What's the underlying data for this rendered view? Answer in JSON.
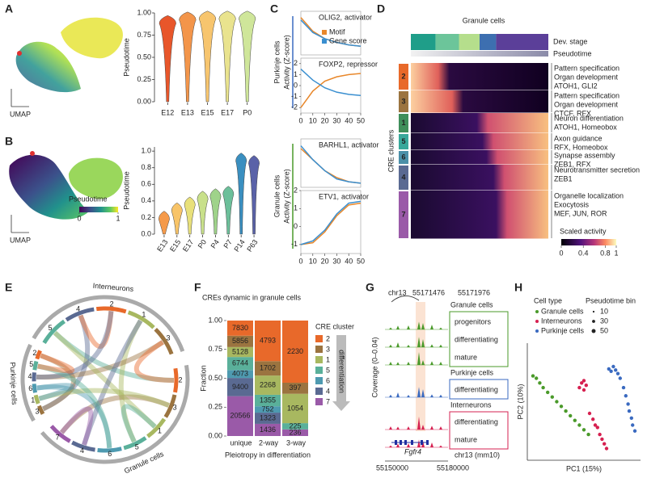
{
  "chart_data": [
    {
      "type": "umap",
      "label": "A",
      "axis_label": "UMAP"
    },
    {
      "type": "violin",
      "categories": [
        "E12",
        "E13",
        "E15",
        "E17",
        "P0"
      ],
      "values": [
        0.88,
        0.92,
        0.93,
        0.93,
        0.93
      ],
      "colors": [
        "#e8562a",
        "#f3954a",
        "#f7c56e",
        "#e9e38e",
        "#cfe69a"
      ],
      "ylabel": "Pseudotime",
      "ylim": [
        0,
        1
      ],
      "yticks": [
        {
          "value": 0,
          "label": "0.00"
        },
        {
          "value": 0.25,
          "label": "0.25"
        },
        {
          "value": 0.5,
          "label": "0.50"
        },
        {
          "value": 0.75,
          "label": "0.75"
        },
        {
          "value": 1,
          "label": "1.00"
        }
      ]
    },
    {
      "type": "umap",
      "label": "B",
      "axis_label": "UMAP",
      "colorbar_title": "Pseudotime",
      "colorbar_ticks": [
        0,
        1
      ]
    },
    {
      "type": "violin",
      "categories": [
        "E13",
        "E15",
        "E17",
        "P0",
        "P4",
        "P7",
        "P14",
        "P63"
      ],
      "values": [
        0.18,
        0.28,
        0.35,
        0.42,
        0.45,
        0.48,
        0.88,
        0.85
      ],
      "colors": [
        "#f59a4a",
        "#f8c468",
        "#e8e07a",
        "#c8e08a",
        "#9fd38a",
        "#6cbf9a",
        "#3a8fc0",
        "#5a62a8"
      ],
      "ylabel": "Pseudotime",
      "ylim": [
        0,
        1.05
      ],
      "yticks": [
        {
          "value": 0,
          "label": "0.0"
        },
        {
          "value": 0.2,
          "label": "0.2"
        },
        {
          "value": 0.4,
          "label": "0.4"
        },
        {
          "value": 0.6,
          "label": "0.6"
        },
        {
          "value": 0.8,
          "label": "0.8"
        },
        {
          "value": 1,
          "label": "1.0"
        }
      ]
    },
    {
      "type": "line",
      "label": "C",
      "x": [
        0,
        10,
        20,
        30,
        40,
        50
      ],
      "xlim": [
        0,
        50
      ],
      "xticks": [
        0,
        10,
        20,
        30,
        40,
        50
      ],
      "series_names": [
        "Motif",
        "Gene score"
      ],
      "series_colors": [
        "#e8872a",
        "#3a8fd0"
      ],
      "groups": [
        {
          "name": "Purkinje cells",
          "color": "#3a6ac0",
          "ylabel": "Activity (Z-score)"
        },
        {
          "name": "Granule cells",
          "color": "#4a9a2a",
          "ylabel": "Activity (Z-score)"
        }
      ],
      "subplots": [
        {
          "gene": "OLIG2,",
          "role": "activator",
          "ylim": [
            -1,
            2.5
          ],
          "values": [
            [
              2,
              0.9,
              0.3,
              0,
              -0.2,
              -0.3
            ],
            [
              1.8,
              0.8,
              0.3,
              0,
              -0.2,
              -0.3
            ]
          ]
        },
        {
          "gene": "FOXP2,",
          "role": "repressor",
          "role_color": "#c8102e",
          "ylim": [
            -2.5,
            2.5
          ],
          "yticks": [
            -2,
            -1,
            0,
            1,
            2
          ],
          "values": [
            [
              -2,
              -0.5,
              0.4,
              0.8,
              1,
              1.1
            ],
            [
              1.5,
              0.5,
              -0.2,
              -0.6,
              -0.8,
              -0.9
            ]
          ]
        },
        {
          "gene": "BARHL1,",
          "role": "activator",
          "ylim": [
            -1,
            2.5
          ],
          "values": [
            [
              1.8,
              1,
              0.2,
              -0.3,
              -0.6,
              -0.7
            ],
            [
              2,
              1,
              0.2,
              -0.4,
              -0.6,
              -0.7
            ]
          ]
        },
        {
          "gene": "ETV1,",
          "role": "activator",
          "ylim": [
            -1.5,
            2
          ],
          "yticks": [
            -1,
            0,
            1,
            2
          ],
          "values": [
            [
              -1,
              -0.9,
              -0.3,
              0.6,
              1.2,
              1.3
            ],
            [
              -1,
              -0.8,
              -0.2,
              0.7,
              1.3,
              1.4
            ]
          ]
        }
      ]
    },
    {
      "type": "heatmap",
      "label": "D",
      "title": "Granule cells",
      "rows": [
        "Dev. stage",
        "Pseudotime"
      ],
      "ylabel": "CRE clusters",
      "colorbar_title": "Scaled activity",
      "colorbar_ticks": [
        0,
        0.4,
        0.8,
        1
      ],
      "clusters": [
        {
          "id": "2",
          "color": "#e8692a",
          "terms": [
            "Pattern specification",
            "Organ development"
          ],
          "tfs": "ATOH1, GLI2"
        },
        {
          "id": "3",
          "color": "#9b7440",
          "terms": [
            "Pattern specification",
            "Organ development"
          ],
          "tfs": "CTCF, RFX"
        },
        {
          "id": "1",
          "color": "#3f8f5a",
          "terms": [
            "Neuron differentiation"
          ],
          "tfs": "ATOH1, Homeobox"
        },
        {
          "id": "5",
          "color": "#38a89a",
          "terms": [
            "Axon guidance"
          ],
          "tfs": "RFX, Homeobox"
        },
        {
          "id": "6",
          "color": "#4b90a8",
          "terms": [
            "Synapse assembly"
          ],
          "tfs": "ZEB1, RFX"
        },
        {
          "id": "4",
          "color": "#5a6a92",
          "terms": [
            "Neurotransmitter secretion"
          ],
          "tfs": "ZEB1"
        },
        {
          "id": "7",
          "color": "#9a5aa8",
          "terms": [
            "Organelle localization",
            "Exocytosis"
          ],
          "tfs": "MEF, JUN, ROR"
        }
      ]
    },
    {
      "type": "chord",
      "label": "E",
      "groups": [
        {
          "name": "Interneurons",
          "segments": [
            "5",
            "4",
            "2",
            "1",
            "3"
          ]
        },
        {
          "name": "Granule cells",
          "segments": [
            "2",
            "3",
            "1",
            "5",
            "6",
            "4",
            "7"
          ]
        },
        {
          "name": "Purkinje cells",
          "segments": [
            "3",
            "1",
            "6",
            "4",
            "5",
            "2"
          ]
        }
      ]
    },
    {
      "type": "stacked_percent_bar",
      "label": "F",
      "title": "CREs dynamic in granule cells",
      "categories": [
        "unique",
        "2-way",
        "3-way"
      ],
      "xlabel": "Pleiotropy in differentiation",
      "ylabel": "Fraction",
      "legend_title": "CRE cluster",
      "legend_note": "differentiation",
      "ylim": [
        0,
        1
      ],
      "yticks": [
        {
          "value": 0,
          "label": "0.00"
        },
        {
          "value": 0.25,
          "label": "0.25"
        },
        {
          "value": 0.5,
          "label": "0.50"
        },
        {
          "value": 0.75,
          "label": "0.75"
        },
        {
          "value": 1,
          "label": "1.00"
        }
      ],
      "series": [
        {
          "name": "2",
          "color": "#e8692a",
          "values": [
            7830,
            4793,
            2230
          ]
        },
        {
          "name": "3",
          "color": "#9b7440",
          "values": [
            5856,
            1702,
            397
          ]
        },
        {
          "name": "1",
          "color": "#a8b860",
          "values": [
            5128,
            2268,
            1054
          ]
        },
        {
          "name": "5",
          "color": "#5ab09a",
          "values": [
            6744,
            1355,
            225
          ]
        },
        {
          "name": "6",
          "color": "#4e9ab0",
          "values": [
            4073,
            752,
            null
          ]
        },
        {
          "name": "4",
          "color": "#5a6a92",
          "values": [
            9400,
            1323,
            null
          ]
        },
        {
          "name": "7",
          "color": "#9a5aa8",
          "values": [
            20566,
            1436,
            236
          ]
        }
      ]
    },
    {
      "type": "tracks",
      "label": "G",
      "chrom": "chr13",
      "highlight": [
        "55171476",
        "55171976"
      ],
      "ylabel": "Coverage (0–0.04)",
      "gene": "Fgfr4",
      "assembly": "chr13 (mm10)",
      "xticks": [
        "55150000",
        "55180000"
      ],
      "track_groups": [
        {
          "name": "Granule cells",
          "color": "#4a9a2a",
          "tracks": [
            "progenitors",
            "differentiating",
            "mature"
          ]
        },
        {
          "name": "Purkinje cells",
          "color": "#3a6ac0",
          "tracks": [
            "differentiating"
          ]
        },
        {
          "name": "Interneurons",
          "color": "#d62050",
          "tracks": [
            "differentiating",
            "mature"
          ]
        }
      ]
    },
    {
      "type": "scatter",
      "label": "H",
      "legend_title": "Cell type",
      "size_title": "Pseudotime bin",
      "size_legend": [
        10,
        30,
        50
      ],
      "xlabel": "PC1 (15%)",
      "ylabel": "PC2 (10%)",
      "xlim": [
        0,
        1
      ],
      "ylim": [
        0,
        1
      ],
      "series": [
        {
          "name": "Granule cells",
          "color": "#4a9a2a",
          "x": [
            0.05,
            0.08,
            0.11,
            0.14,
            0.18,
            0.22,
            0.26,
            0.3,
            0.34,
            0.38,
            0.42,
            0.46,
            0.5,
            0.54
          ],
          "y": [
            0.72,
            0.7,
            0.66,
            0.62,
            0.58,
            0.54,
            0.5,
            0.46,
            0.42,
            0.38,
            0.34,
            0.3,
            0.26,
            0.22
          ]
        },
        {
          "name": "Interneurons",
          "color": "#d62050",
          "x": [
            0.46,
            0.48,
            0.5,
            0.52,
            0.5,
            0.55,
            0.58,
            0.6,
            0.62,
            0.64,
            0.66,
            0.68,
            0.7
          ],
          "y": [
            0.62,
            0.66,
            0.6,
            0.64,
            0.68,
            0.4,
            0.35,
            0.3,
            0.28,
            0.22,
            0.18,
            0.14,
            0.1
          ]
        },
        {
          "name": "Purkinje cells",
          "color": "#3a6ac0",
          "x": [
            0.72,
            0.74,
            0.76,
            0.78,
            0.8,
            0.82,
            0.85,
            0.87,
            0.89,
            0.9,
            0.92,
            0.93,
            0.95
          ],
          "y": [
            0.78,
            0.76,
            0.8,
            0.77,
            0.74,
            0.7,
            0.62,
            0.55,
            0.48,
            0.42,
            0.36,
            0.3,
            0.25
          ]
        }
      ]
    }
  ]
}
